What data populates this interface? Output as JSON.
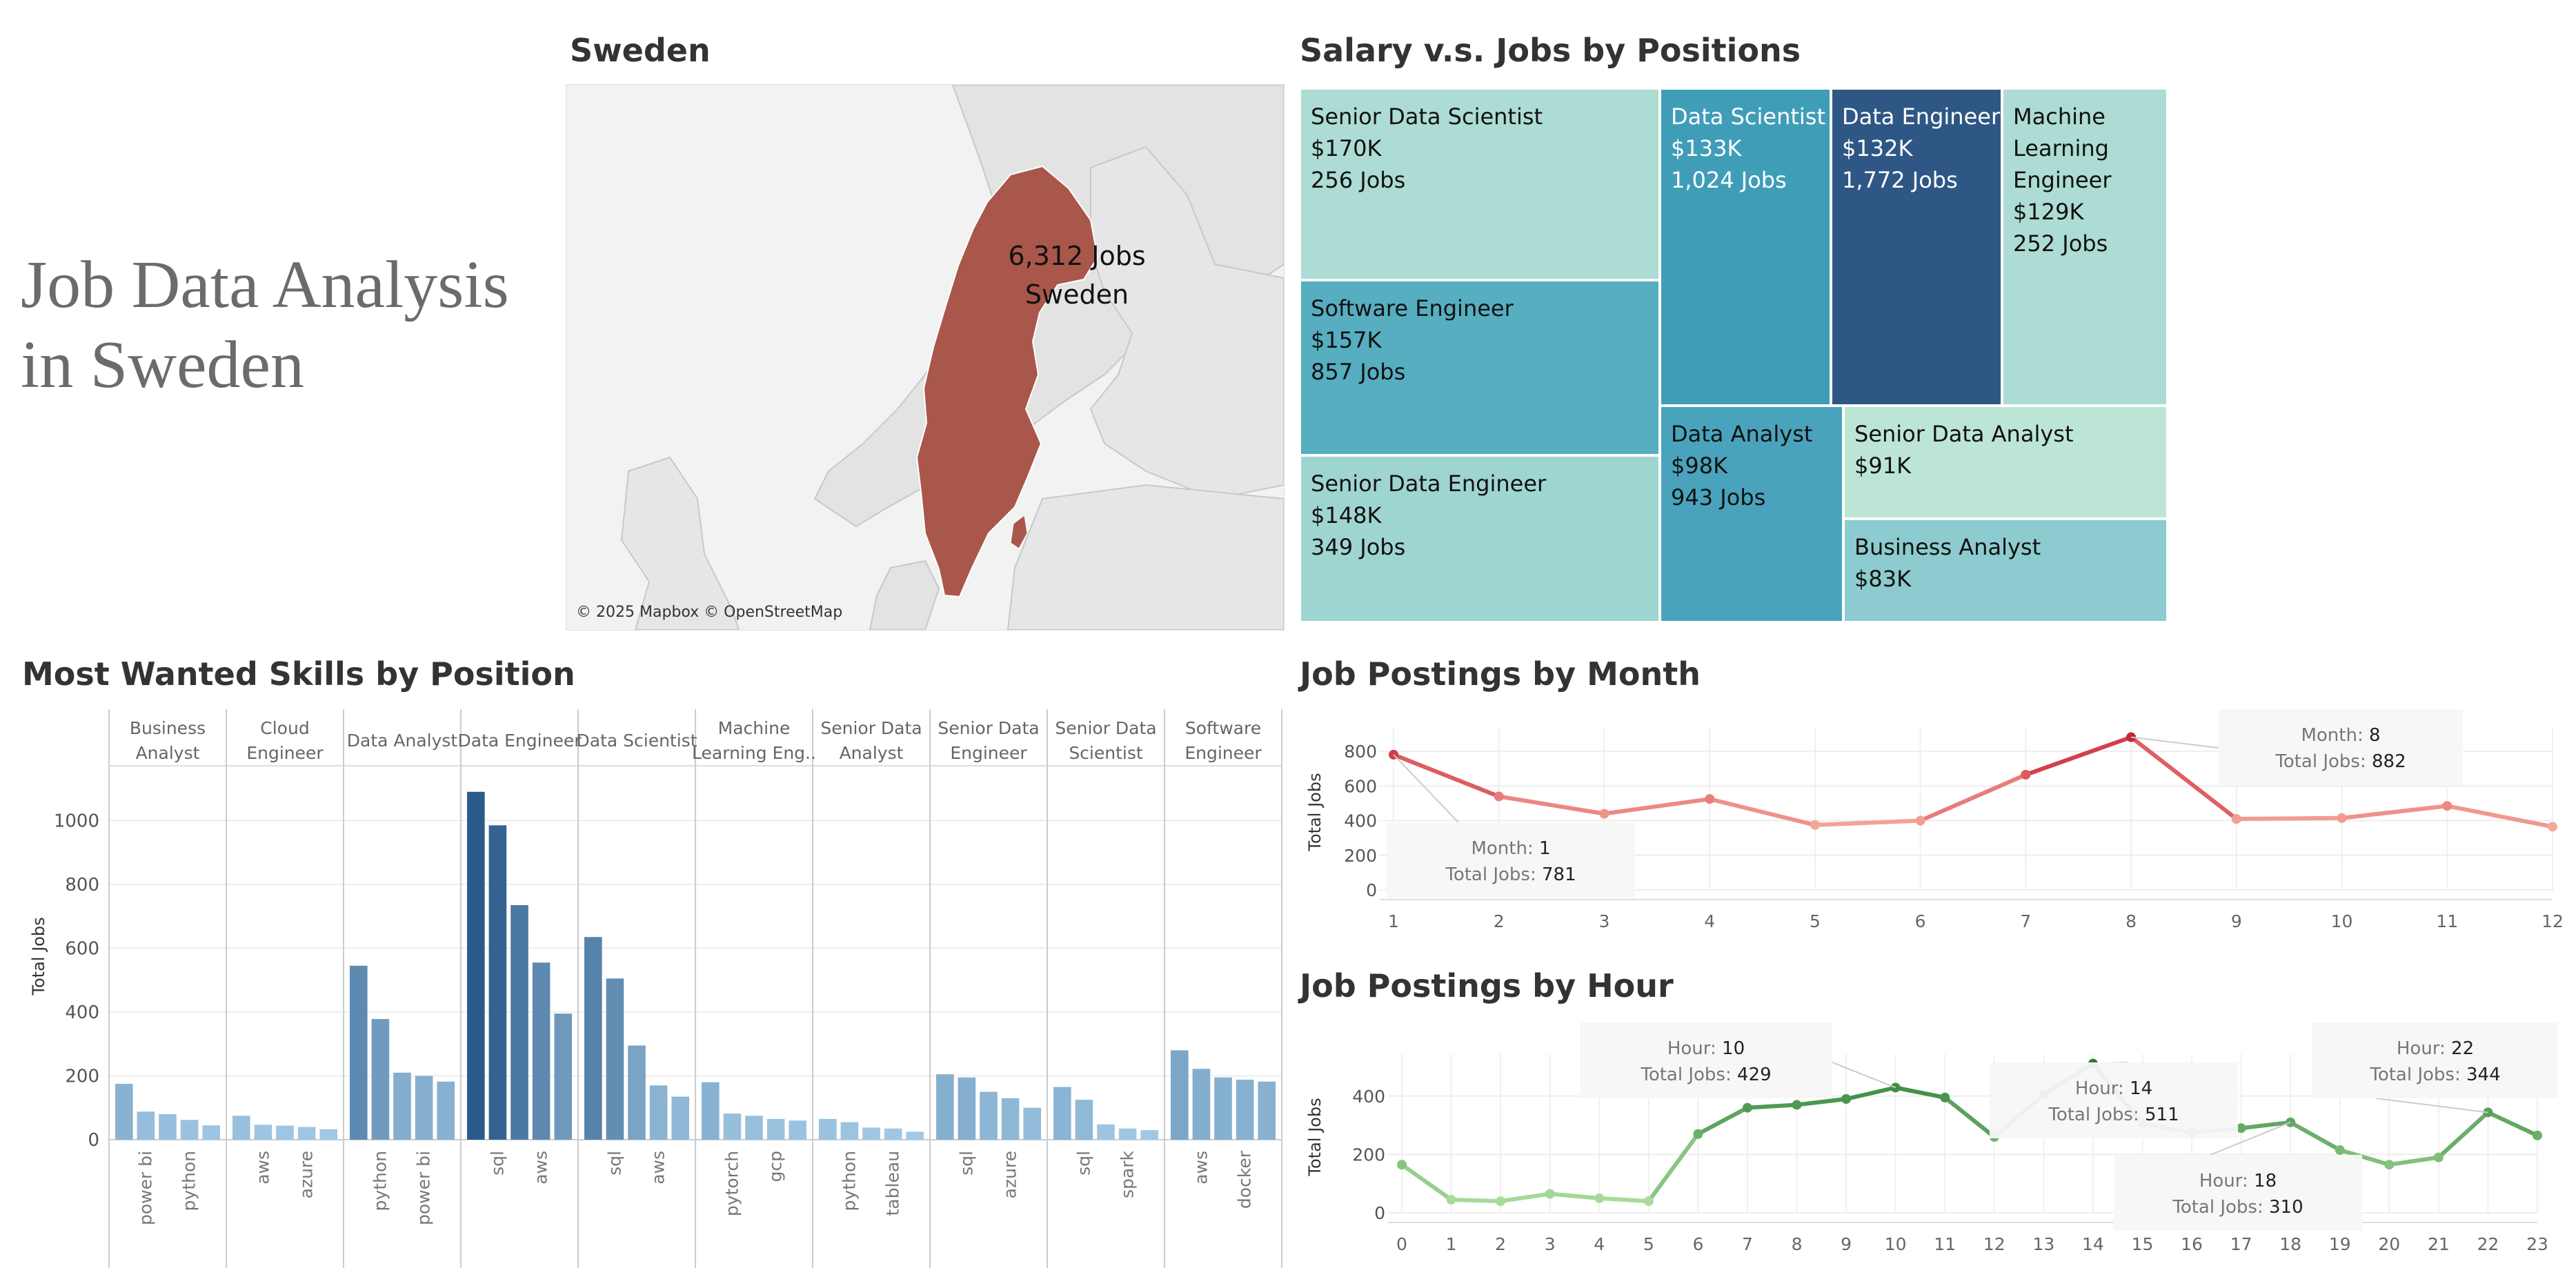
{
  "page": {
    "title_line1": "Job Data Analysis",
    "title_line2": "in Sweden"
  },
  "map": {
    "title": "Sweden",
    "label_jobs": "6,312 Jobs",
    "label_country": "Sweden",
    "attribution": "© 2025 Mapbox © OpenStreetMap",
    "fill_color": "#a9574a"
  },
  "treemap": {
    "title": "Salary v.s. Jobs by Positions",
    "cells": [
      {
        "name": "Senior Data Scientist",
        "salary": "$170K",
        "jobs": "256 Jobs",
        "color": "#acdcd4",
        "text": "#111"
      },
      {
        "name": "Software Engineer",
        "salary": "$157K",
        "jobs": "857 Jobs",
        "color": "#56aec0",
        "text": "#111"
      },
      {
        "name": "Senior Data Engineer",
        "salary": "$148K",
        "jobs": "349 Jobs",
        "color": "#9fd5d1",
        "text": "#111"
      },
      {
        "name": "Data Scientist",
        "salary": "$133K",
        "jobs": "1,024 Jobs",
        "color": "#409db8",
        "text": "#fff"
      },
      {
        "name": "Data Engineer",
        "salary": "$132K",
        "jobs": "1,772 Jobs",
        "color": "#2e5785",
        "text": "#fff"
      },
      {
        "name": "Machine Learning Engineer",
        "name_lines": [
          "Machine",
          "Learning",
          "Engineer"
        ],
        "salary": "$129K",
        "jobs": "252 Jobs",
        "color": "#acdcd4",
        "text": "#111"
      },
      {
        "name": "Data Analyst",
        "salary": "$98K",
        "jobs": "943 Jobs",
        "color": "#4aa3bc",
        "text": "#111"
      },
      {
        "name": "Senior Data Analyst",
        "salary": "$91K",
        "jobs": "",
        "color": "#bde5d6",
        "text": "#111"
      },
      {
        "name": "Business Analyst",
        "salary": "$83K",
        "jobs": "",
        "color": "#8ccbcf",
        "text": "#111"
      }
    ]
  },
  "chart_data": [
    {
      "type": "bar",
      "title": "Most Wanted Skills by Position",
      "ylabel": "Total Jobs",
      "ylim": [
        0,
        1150
      ],
      "yticks": [
        0,
        200,
        400,
        600,
        800,
        1000
      ],
      "panels": [
        {
          "header": [
            "Business",
            "Analyst"
          ],
          "values": [
            175,
            88,
            80,
            62,
            45
          ],
          "labels": [
            "",
            "power bi",
            "",
            "python",
            ""
          ]
        },
        {
          "header": [
            "Cloud",
            "Engineer"
          ],
          "values": [
            75,
            47,
            44,
            40,
            33
          ],
          "labels": [
            "",
            "aws",
            "",
            "azure",
            ""
          ]
        },
        {
          "header": [
            "Data Analyst"
          ],
          "values": [
            545,
            378,
            210,
            200,
            182
          ],
          "labels": [
            "",
            "python",
            "",
            "power bi",
            ""
          ]
        },
        {
          "header": [
            "Data Engineer"
          ],
          "values": [
            1090,
            985,
            735,
            555,
            395
          ],
          "labels": [
            "",
            "sql",
            "",
            "aws",
            ""
          ]
        },
        {
          "header": [
            "Data Scientist"
          ],
          "values": [
            635,
            505,
            295,
            170,
            135
          ],
          "labels": [
            "",
            "sql",
            "",
            "aws",
            ""
          ]
        },
        {
          "header": [
            "Machine",
            "Learning Eng.."
          ],
          "values": [
            180,
            82,
            75,
            65,
            60
          ],
          "labels": [
            "",
            "pytorch",
            "",
            "gcp",
            ""
          ]
        },
        {
          "header": [
            "Senior Data",
            "Analyst"
          ],
          "values": [
            65,
            55,
            38,
            35,
            25
          ],
          "labels": [
            "",
            "python",
            "",
            "tableau",
            ""
          ]
        },
        {
          "header": [
            "Senior Data",
            "Engineer"
          ],
          "values": [
            205,
            195,
            150,
            130,
            100
          ],
          "labels": [
            "",
            "sql",
            "",
            "azure",
            ""
          ]
        },
        {
          "header": [
            "Senior Data",
            "Scientist"
          ],
          "values": [
            165,
            125,
            48,
            35,
            30
          ],
          "labels": [
            "",
            "sql",
            "",
            "spark",
            ""
          ]
        },
        {
          "header": [
            "Software",
            "Engineer"
          ],
          "values": [
            280,
            222,
            195,
            188,
            182
          ],
          "labels": [
            "",
            "aws",
            "",
            "docker",
            ""
          ]
        }
      ]
    },
    {
      "type": "line",
      "title": "Job Postings by Month",
      "ylabel": "Total Jobs",
      "x": [
        1,
        2,
        3,
        4,
        5,
        6,
        7,
        8,
        9,
        10,
        11,
        12
      ],
      "y": [
        781,
        540,
        440,
        525,
        375,
        400,
        665,
        882,
        410,
        415,
        485,
        365
      ],
      "ylim": [
        0,
        900
      ],
      "yticks": [
        0,
        200,
        400,
        600,
        800
      ],
      "tooltips": [
        {
          "x_label": "Month",
          "x": "1",
          "y_label": "Total Jobs",
          "y": "781"
        },
        {
          "x_label": "Month",
          "x": "8",
          "y_label": "Total Jobs",
          "y": "882"
        }
      ]
    },
    {
      "type": "line",
      "title": "Job Postings by Hour",
      "ylabel": "Total Jobs",
      "x": [
        0,
        1,
        2,
        3,
        4,
        5,
        6,
        7,
        8,
        9,
        10,
        11,
        12,
        13,
        14,
        15,
        16,
        17,
        18,
        19,
        20,
        21,
        22,
        23
      ],
      "y": [
        165,
        45,
        40,
        65,
        50,
        40,
        270,
        360,
        370,
        390,
        429,
        395,
        260,
        405,
        511,
        305,
        275,
        290,
        310,
        215,
        165,
        190,
        344,
        265
      ],
      "ylim": [
        0,
        520
      ],
      "yticks": [
        0,
        200,
        400
      ],
      "tooltips": [
        {
          "x_label": "Hour",
          "x": "10",
          "y_label": "Total Jobs",
          "y": "429"
        },
        {
          "x_label": "Hour",
          "x": "14",
          "y_label": "Total Jobs",
          "y": "511"
        },
        {
          "x_label": "Hour",
          "x": "18",
          "y_label": "Total Jobs",
          "y": "310"
        },
        {
          "x_label": "Hour",
          "x": "22",
          "y_label": "Total Jobs",
          "y": "344"
        }
      ]
    }
  ]
}
